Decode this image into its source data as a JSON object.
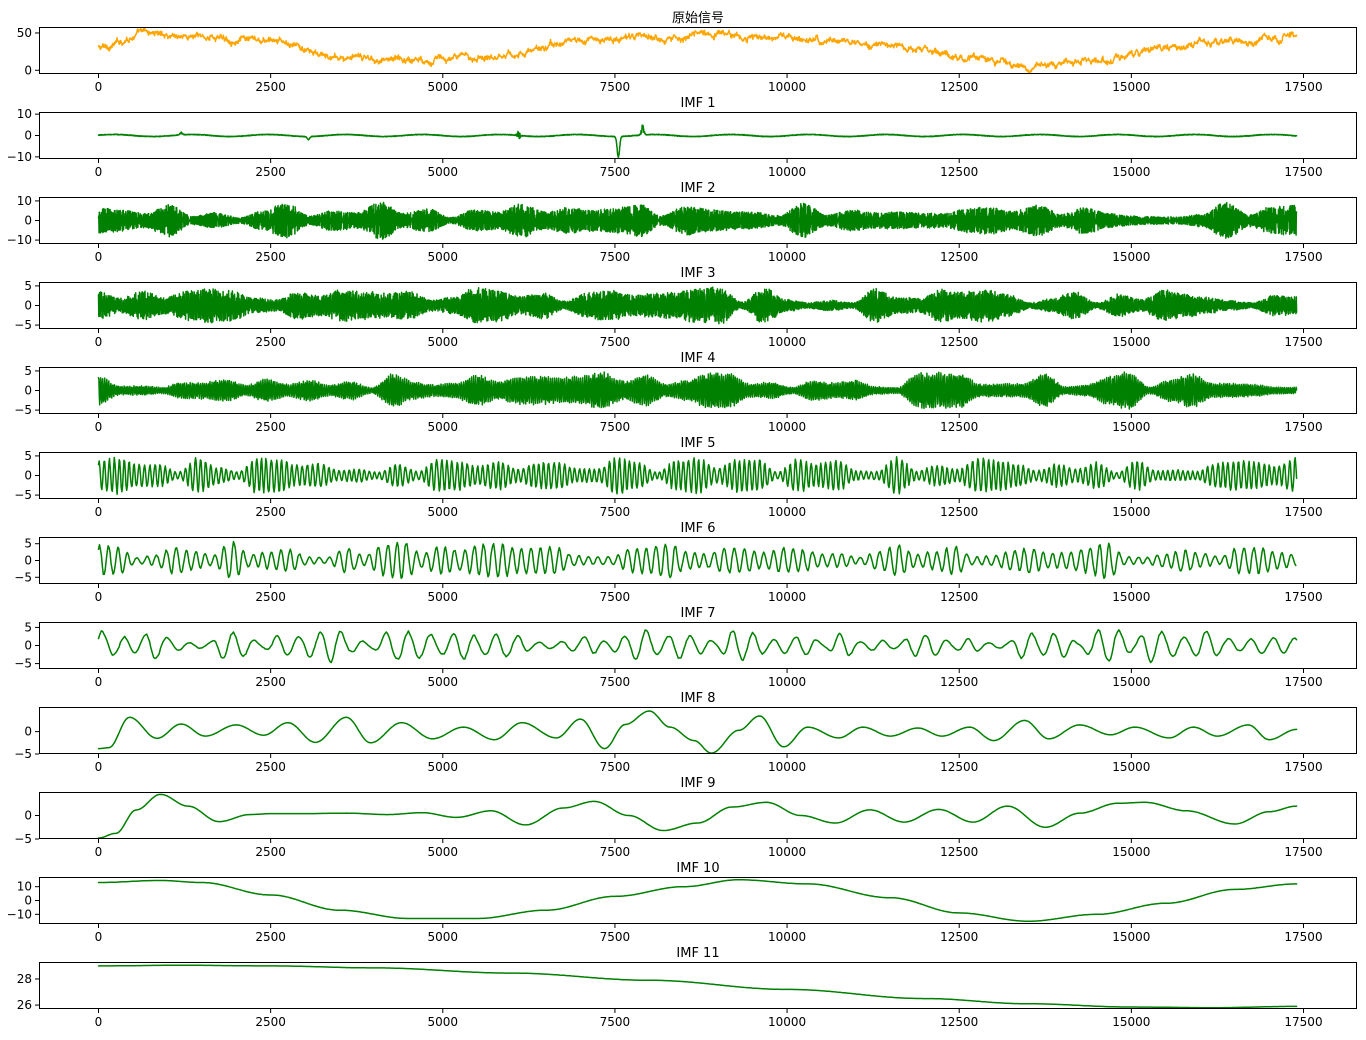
{
  "figure": {
    "signal_colors": {
      "original": "#FFA500",
      "imf": "#008000"
    }
  },
  "chart_data": [
    {
      "type": "line",
      "title": "原始信号",
      "xlim": [
        0,
        17500
      ],
      "ylim": [
        -5,
        58
      ],
      "xticks": [
        "0",
        "2500",
        "5000",
        "7500",
        "10000",
        "12500",
        "15000",
        "17500"
      ],
      "yticks": [
        0,
        50
      ],
      "series": [
        {
          "color": "#FFA500",
          "trend_points": [
            [
              0,
              30
            ],
            [
              700,
              50
            ],
            [
              1500,
              45
            ],
            [
              2500,
              38
            ],
            [
              3500,
              16
            ],
            [
              5000,
              15
            ],
            [
              6000,
              22
            ],
            [
              7000,
              40
            ],
            [
              8000,
              44
            ],
            [
              9000,
              48
            ],
            [
              9500,
              45
            ],
            [
              10500,
              40
            ],
            [
              11500,
              34
            ],
            [
              12500,
              18
            ],
            [
              13500,
              5
            ],
            [
              14500,
              15
            ],
            [
              15500,
              30
            ],
            [
              16500,
              38
            ],
            [
              17400,
              45
            ]
          ],
          "noise_amplitude": 5
        }
      ]
    },
    {
      "type": "line",
      "title": "IMF 1",
      "xlim": [
        0,
        17500
      ],
      "ylim": [
        -11,
        11
      ],
      "xticks": [
        "0",
        "2500",
        "5000",
        "7500",
        "10000",
        "12500",
        "15000",
        "17500"
      ],
      "yticks": [
        -10,
        0,
        10
      ],
      "series": [
        {
          "color": "#008000",
          "base_amplitude": 0.6,
          "bursts": [
            [
              6100,
              7
            ],
            [
              7550,
              10
            ],
            [
              7900,
              6
            ],
            [
              1200,
              1.5
            ],
            [
              3050,
              1.5
            ]
          ]
        }
      ]
    },
    {
      "type": "line",
      "title": "IMF 2",
      "xlim": [
        0,
        17500
      ],
      "ylim": [
        -12,
        12
      ],
      "xticks": [
        "0",
        "2500",
        "5000",
        "7500",
        "10000",
        "12500",
        "15000",
        "17500"
      ],
      "yticks": [
        -10,
        0,
        10
      ],
      "series": [
        {
          "color": "#008000",
          "max_amplitude": 10
        }
      ]
    },
    {
      "type": "line",
      "title": "IMF 3",
      "xlim": [
        0,
        17500
      ],
      "ylim": [
        -6,
        6
      ],
      "xticks": [
        "0",
        "2500",
        "5000",
        "7500",
        "10000",
        "12500",
        "15000",
        "17500"
      ],
      "yticks": [
        -5,
        0,
        5
      ],
      "series": [
        {
          "color": "#008000",
          "max_amplitude": 5
        }
      ]
    },
    {
      "type": "line",
      "title": "IMF 4",
      "xlim": [
        0,
        17500
      ],
      "ylim": [
        -6,
        6
      ],
      "xticks": [
        "0",
        "2500",
        "5000",
        "7500",
        "10000",
        "12500",
        "15000",
        "17500"
      ],
      "yticks": [
        -5,
        0,
        5
      ],
      "series": [
        {
          "color": "#008000",
          "max_amplitude": 5
        }
      ]
    },
    {
      "type": "line",
      "title": "IMF 5",
      "xlim": [
        0,
        17500
      ],
      "ylim": [
        -6,
        6
      ],
      "xticks": [
        "0",
        "2500",
        "5000",
        "7500",
        "10000",
        "12500",
        "15000",
        "17500"
      ],
      "yticks": [
        -5,
        0,
        5
      ],
      "series": [
        {
          "color": "#008000",
          "max_amplitude": 5
        }
      ]
    },
    {
      "type": "line",
      "title": "IMF 6",
      "xlim": [
        0,
        17500
      ],
      "ylim": [
        -7,
        7
      ],
      "xticks": [
        "0",
        "2500",
        "5000",
        "7500",
        "10000",
        "12500",
        "15000",
        "17500"
      ],
      "yticks": [
        -5,
        0,
        5
      ],
      "series": [
        {
          "color": "#008000",
          "max_amplitude": 6
        }
      ]
    },
    {
      "type": "line",
      "title": "IMF 7",
      "xlim": [
        0,
        17500
      ],
      "ylim": [
        -6.5,
        6.5
      ],
      "xticks": [
        "0",
        "2500",
        "5000",
        "7500",
        "10000",
        "12500",
        "15000",
        "17500"
      ],
      "yticks": [
        -5,
        0,
        5
      ],
      "series": [
        {
          "color": "#008000",
          "max_amplitude": 5
        }
      ]
    },
    {
      "type": "line",
      "title": "IMF 8",
      "xlim": [
        0,
        17500
      ],
      "ylim": [
        -5,
        5.5
      ],
      "xticks": [
        "0",
        "2500",
        "5000",
        "7500",
        "10000",
        "12500",
        "15000",
        "17500"
      ],
      "yticks": [
        -5,
        0
      ],
      "series": [
        {
          "color": "#008000",
          "points": [
            [
              0,
              -3.8
            ],
            [
              150,
              -3.6
            ],
            [
              450,
              3.2
            ],
            [
              850,
              -1.5
            ],
            [
              1200,
              1.7
            ],
            [
              1550,
              -1.0
            ],
            [
              2000,
              1.5
            ],
            [
              2400,
              -0.8
            ],
            [
              2750,
              2.0
            ],
            [
              3150,
              -2.4
            ],
            [
              3600,
              3.2
            ],
            [
              3950,
              -2.5
            ],
            [
              4400,
              2.0
            ],
            [
              4850,
              -1.6
            ],
            [
              5300,
              1.0
            ],
            [
              5750,
              -1.8
            ],
            [
              6150,
              2.0
            ],
            [
              6650,
              -1.4
            ],
            [
              7000,
              2.8
            ],
            [
              7350,
              -3.8
            ],
            [
              7650,
              1.6
            ],
            [
              8000,
              4.6
            ],
            [
              8300,
              1.0
            ],
            [
              8650,
              -2.0
            ],
            [
              8900,
              -4.8
            ],
            [
              9300,
              0.3
            ],
            [
              9600,
              3.5
            ],
            [
              9950,
              -3.4
            ],
            [
              10300,
              1.0
            ],
            [
              10750,
              -1.4
            ],
            [
              11100,
              1.0
            ],
            [
              11500,
              -1.0
            ],
            [
              11900,
              0.8
            ],
            [
              12250,
              -1.0
            ],
            [
              12650,
              1.0
            ],
            [
              13000,
              -2.0
            ],
            [
              13450,
              2.5
            ],
            [
              13800,
              -1.6
            ],
            [
              14250,
              1.5
            ],
            [
              14700,
              -0.7
            ],
            [
              15050,
              1.0
            ],
            [
              15550,
              -1.4
            ],
            [
              15900,
              1.0
            ],
            [
              16250,
              -1.0
            ],
            [
              16700,
              1.5
            ],
            [
              17000,
              -1.8
            ],
            [
              17400,
              0.5
            ]
          ]
        }
      ]
    },
    {
      "type": "line",
      "title": "IMF 9",
      "xlim": [
        0,
        17500
      ],
      "ylim": [
        -5,
        5
      ],
      "xticks": [
        "0",
        "2500",
        "5000",
        "7500",
        "10000",
        "12500",
        "15000",
        "17500"
      ],
      "yticks": [
        -5,
        0
      ],
      "series": [
        {
          "color": "#008000",
          "points": [
            [
              0,
              -4.8
            ],
            [
              250,
              -3.8
            ],
            [
              550,
              1.2
            ],
            [
              900,
              4.5
            ],
            [
              1300,
              2.0
            ],
            [
              1750,
              -1.3
            ],
            [
              2200,
              0.2
            ],
            [
              2500,
              0.4
            ],
            [
              3000,
              0.4
            ],
            [
              3600,
              0.5
            ],
            [
              4200,
              0.2
            ],
            [
              4700,
              0.6
            ],
            [
              5200,
              -0.4
            ],
            [
              5700,
              1.0
            ],
            [
              6200,
              -2.0
            ],
            [
              6750,
              1.6
            ],
            [
              7200,
              3.0
            ],
            [
              7700,
              0.0
            ],
            [
              8200,
              -3.2
            ],
            [
              8700,
              -1.6
            ],
            [
              9200,
              1.8
            ],
            [
              9700,
              2.8
            ],
            [
              10200,
              0.0
            ],
            [
              10700,
              -1.6
            ],
            [
              11200,
              1.2
            ],
            [
              11700,
              -1.4
            ],
            [
              12200,
              1.3
            ],
            [
              12700,
              -1.4
            ],
            [
              13200,
              2.0
            ],
            [
              13750,
              -2.5
            ],
            [
              14250,
              0.5
            ],
            [
              14800,
              2.6
            ],
            [
              15200,
              2.8
            ],
            [
              15800,
              1.0
            ],
            [
              16500,
              -1.8
            ],
            [
              17000,
              0.8
            ],
            [
              17400,
              2.0
            ]
          ]
        }
      ]
    },
    {
      "type": "line",
      "title": "IMF 10",
      "xlim": [
        0,
        17500
      ],
      "ylim": [
        -17,
        17
      ],
      "xticks": [
        "0",
        "2500",
        "5000",
        "7500",
        "10000",
        "12500",
        "15000",
        "17500"
      ],
      "yticks": [
        -10,
        0,
        10
      ],
      "series": [
        {
          "color": "#008000",
          "points": [
            [
              0,
              13
            ],
            [
              900,
              14.5
            ],
            [
              1500,
              13
            ],
            [
              2500,
              4
            ],
            [
              3500,
              -7
            ],
            [
              4500,
              -13
            ],
            [
              5500,
              -13
            ],
            [
              6500,
              -7
            ],
            [
              7500,
              3
            ],
            [
              8500,
              10
            ],
            [
              9300,
              15
            ],
            [
              10300,
              12
            ],
            [
              11500,
              2
            ],
            [
              12500,
              -9
            ],
            [
              13500,
              -15
            ],
            [
              14500,
              -10
            ],
            [
              15500,
              -2
            ],
            [
              16500,
              8
            ],
            [
              17400,
              12
            ]
          ]
        }
      ]
    },
    {
      "type": "line",
      "title": "IMF 11",
      "xlim": [
        0,
        17500
      ],
      "ylim": [
        25.7,
        29.3
      ],
      "xticks": [
        "0",
        "2500",
        "5000",
        "7500",
        "10000",
        "12500",
        "15000",
        "17500"
      ],
      "yticks": [
        26,
        28
      ],
      "series": [
        {
          "color": "#008000",
          "points": [
            [
              0,
              29.0
            ],
            [
              1200,
              29.05
            ],
            [
              2500,
              29.0
            ],
            [
              4000,
              28.85
            ],
            [
              6000,
              28.45
            ],
            [
              8000,
              27.9
            ],
            [
              10000,
              27.2
            ],
            [
              12000,
              26.5
            ],
            [
              13500,
              26.1
            ],
            [
              15000,
              25.85
            ],
            [
              16200,
              25.8
            ],
            [
              17400,
              25.9
            ]
          ]
        }
      ]
    }
  ]
}
